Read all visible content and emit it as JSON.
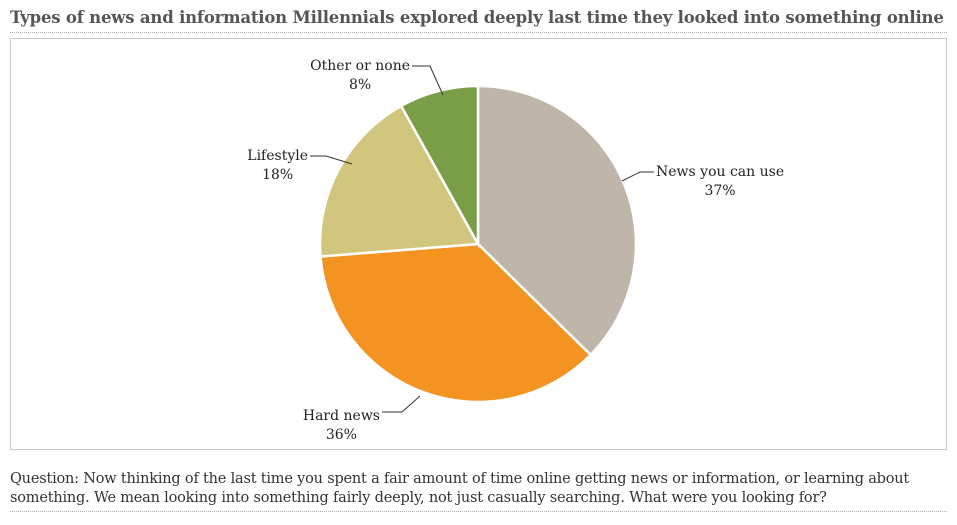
{
  "title": "Types of news and information Millennials explored deeply last time they looked into something online",
  "note": "Question: Now thinking of the last time you spent a fair amount of time online getting news or information, or learning about something. We mean looking into something fairly deeply, not just casually searching. What were you looking for?",
  "chart_data": {
    "type": "pie",
    "slices": [
      {
        "label": "News you can use",
        "value": 37,
        "display": "37%",
        "color": "#bfb5a8"
      },
      {
        "label": "Hard news",
        "value": 36,
        "display": "36%",
        "color": "#f39321"
      },
      {
        "label": "Lifestyle",
        "value": 18,
        "display": "18%",
        "color": "#d2c67f"
      },
      {
        "label": "Other or none",
        "value": 8,
        "display": "8%",
        "color": "#7a9e47"
      }
    ],
    "start": "12 o'clock",
    "direction": "clockwise"
  }
}
